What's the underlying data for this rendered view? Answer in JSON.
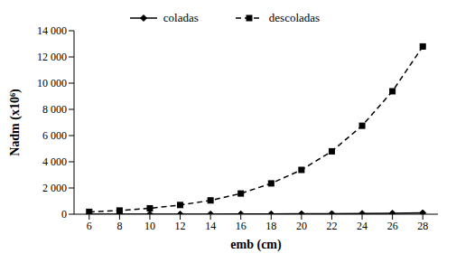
{
  "chart_data": {
    "type": "line",
    "x_label": "emb (cm)",
    "y_label": "Nadm (x10⁶)",
    "x": [
      6,
      8,
      10,
      12,
      14,
      16,
      18,
      20,
      22,
      24,
      26,
      28
    ],
    "xlim": [
      5,
      29
    ],
    "xticks": [
      6,
      8,
      10,
      12,
      14,
      16,
      18,
      20,
      22,
      24,
      26,
      28
    ],
    "ylim": [
      0,
      14000
    ],
    "yticks": [
      0,
      {
        "value": 2000,
        "label": "2 000"
      },
      {
        "value": 4000,
        "label": "4 000"
      },
      {
        "value": 6000,
        "label": "6 000"
      },
      {
        "value": 8000,
        "label": "8 000"
      },
      {
        "value": 10000,
        "label": "10 000"
      },
      {
        "value": 12000,
        "label": "12 000"
      },
      {
        "value": 14000,
        "label": "14 000"
      }
    ],
    "grid": false,
    "legend": "top",
    "series": [
      {
        "name": "coladas",
        "color": "#000000",
        "marker": "diamond",
        "line_style": "solid",
        "values": [
          1,
          2,
          3,
          5,
          8,
          12,
          18,
          26,
          37,
          52,
          72,
          100
        ]
      },
      {
        "name": "descoladas",
        "color": "#000000",
        "marker": "square",
        "line_style": "dashed",
        "values": [
          180,
          280,
          450,
          700,
          1050,
          1580,
          2350,
          3380,
          4800,
          6750,
          9380,
          12800
        ]
      }
    ]
  }
}
